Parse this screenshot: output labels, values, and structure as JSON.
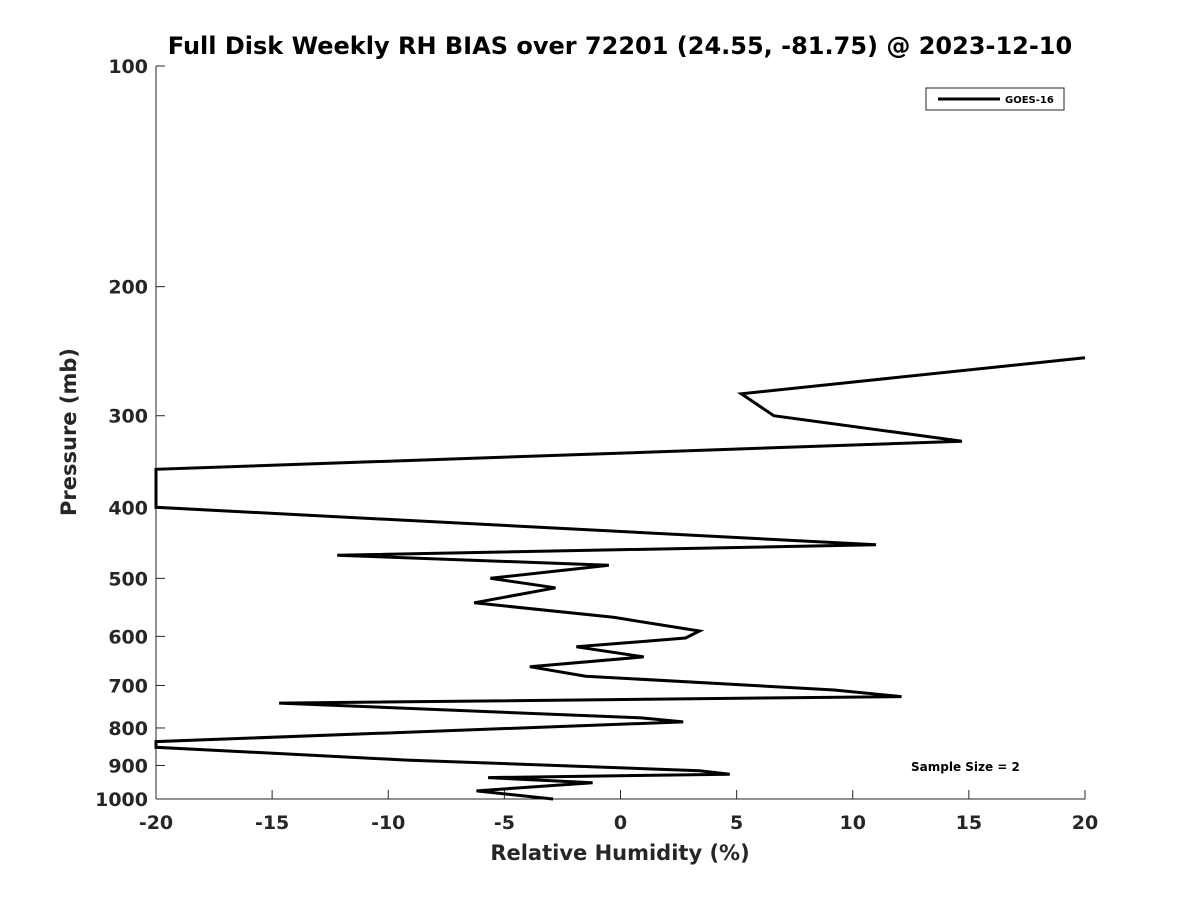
{
  "chart_data": {
    "type": "line",
    "title": "Full Disk Weekly RH BIAS over 72201 (24.55, -81.75) @ 2023-12-10",
    "xlabel": "Relative Humidity (%)",
    "ylabel": "Pressure (mb)",
    "xlim": [
      -20,
      20
    ],
    "ylim": [
      100,
      1000
    ],
    "y_scale": "log",
    "y_reversed": true,
    "x_ticks": [
      -20,
      -15,
      -10,
      -5,
      0,
      5,
      10,
      15,
      20
    ],
    "y_ticks": [
      100,
      200,
      300,
      400,
      500,
      600,
      700,
      800,
      900,
      1000
    ],
    "grid": false,
    "legend": {
      "location": "top-right",
      "entries": [
        "GOES-16"
      ]
    },
    "annotations": [
      "Sample Size = 2"
    ],
    "series": [
      {
        "name": "GOES-16",
        "color": "#000000",
        "points": [
          [
            20.0,
            250
          ],
          [
            5.2,
            280
          ],
          [
            6.6,
            300
          ],
          [
            14.7,
            325
          ],
          [
            -20.0,
            355
          ],
          [
            -20.0,
            400
          ],
          [
            11.0,
            450
          ],
          [
            -12.2,
            465
          ],
          [
            -0.5,
            480
          ],
          [
            -5.6,
            500
          ],
          [
            -2.8,
            515
          ],
          [
            -6.3,
            540
          ],
          [
            -0.3,
            565
          ],
          [
            3.4,
            590
          ],
          [
            2.8,
            603
          ],
          [
            -1.9,
            620
          ],
          [
            1.0,
            640
          ],
          [
            -3.9,
            660
          ],
          [
            -1.5,
            680
          ],
          [
            9.2,
            710
          ],
          [
            12.1,
            725
          ],
          [
            -14.7,
            740
          ],
          [
            0.9,
            775
          ],
          [
            2.7,
            785
          ],
          [
            -20.0,
            835
          ],
          [
            -20.0,
            850
          ],
          [
            -9.2,
            885
          ],
          [
            3.4,
            915
          ],
          [
            4.7,
            925
          ],
          [
            -5.7,
            935
          ],
          [
            -1.2,
            950
          ],
          [
            -6.2,
            975
          ],
          [
            -2.9,
            1000
          ]
        ]
      }
    ]
  }
}
